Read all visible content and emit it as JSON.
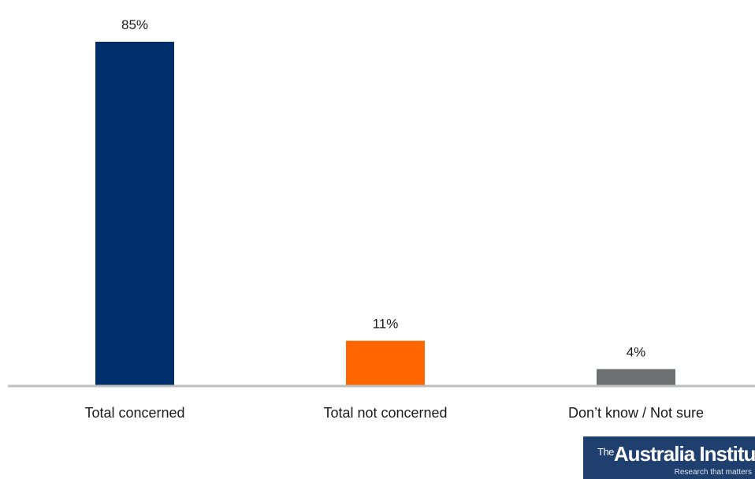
{
  "chart_data": {
    "type": "bar",
    "categories": [
      "Total concerned",
      "Total not concerned",
      "Don’t know / Not sure"
    ],
    "values": [
      85,
      11,
      4
    ],
    "value_labels": [
      "85%",
      "11%",
      "4%"
    ],
    "colors": [
      "#002f6c",
      "#ff6600",
      "#6e6f71"
    ],
    "ylim": [
      0,
      85
    ],
    "grid": false,
    "title": "",
    "xlabel": "",
    "ylabel": ""
  },
  "logo": {
    "the": "The",
    "name": "Australia Institute",
    "tagline": "Research that matters"
  }
}
